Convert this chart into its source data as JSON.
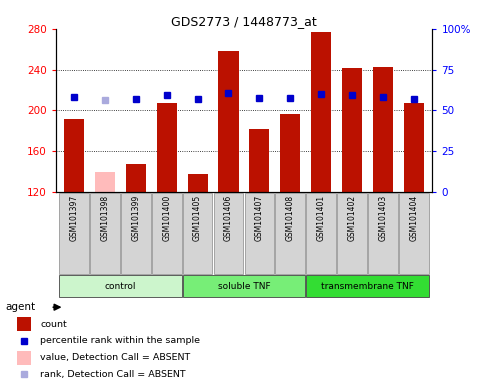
{
  "title": "GDS2773 / 1448773_at",
  "samples": [
    "GSM101397",
    "GSM101398",
    "GSM101399",
    "GSM101400",
    "GSM101405",
    "GSM101406",
    "GSM101407",
    "GSM101408",
    "GSM101401",
    "GSM101402",
    "GSM101403",
    "GSM101404"
  ],
  "counts": [
    192,
    140,
    147,
    207,
    138,
    258,
    182,
    196,
    277,
    242,
    243,
    207
  ],
  "counts_absent": [
    false,
    true,
    false,
    false,
    false,
    false,
    false,
    false,
    false,
    false,
    false,
    false
  ],
  "ranks": [
    213,
    210,
    211,
    215,
    211,
    217,
    212,
    212,
    216,
    215,
    213,
    211
  ],
  "ranks_absent": [
    false,
    true,
    false,
    false,
    false,
    false,
    false,
    false,
    false,
    false,
    false,
    false
  ],
  "ymin": 120,
  "ymax": 280,
  "y2min": 0,
  "y2max": 100,
  "yticks": [
    120,
    160,
    200,
    240,
    280
  ],
  "y2ticks": [
    0,
    25,
    50,
    75,
    100
  ],
  "groups": [
    {
      "label": "control",
      "start": 0,
      "end": 3,
      "color": "#ccf5cc"
    },
    {
      "label": "soluble TNF",
      "start": 4,
      "end": 7,
      "color": "#77ee77"
    },
    {
      "label": "transmembrane TNF",
      "start": 8,
      "end": 11,
      "color": "#33dd33"
    }
  ],
  "bar_color_present": "#bb1100",
  "bar_color_absent": "#ffbbbb",
  "dot_color_present": "#0000cc",
  "dot_color_absent": "#aaaadd",
  "sample_box_color": "#d4d4d4",
  "plot_bg": "#ffffff",
  "legend_items": [
    {
      "type": "rect",
      "color": "#bb1100",
      "label": "count"
    },
    {
      "type": "square",
      "color": "#0000cc",
      "label": "percentile rank within the sample"
    },
    {
      "type": "rect",
      "color": "#ffbbbb",
      "label": "value, Detection Call = ABSENT"
    },
    {
      "type": "square",
      "color": "#aaaadd",
      "label": "rank, Detection Call = ABSENT"
    }
  ]
}
